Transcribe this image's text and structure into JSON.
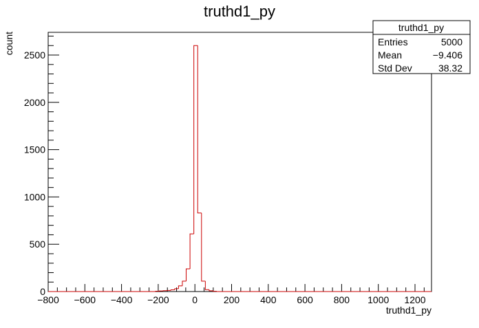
{
  "chart_data": {
    "type": "histogram",
    "title": "truthd1_py",
    "x_label": "truthd1_py",
    "y_label": "count",
    "bins": [
      -214.8,
      -193.9,
      -173,
      -152.1,
      -131.2,
      -110.3,
      -89.4,
      -68.5,
      -47.6,
      -26.7,
      -5.8,
      15.1,
      36,
      56.9,
      77.8,
      98.7,
      119.6
    ],
    "values": [
      4,
      6,
      9,
      12,
      18,
      30,
      60,
      110,
      240,
      610,
      2600,
      830,
      110,
      20,
      8,
      3
    ],
    "color": "#cc0000",
    "xlim": [
      -800,
      1290
    ],
    "ylim": [
      0,
      2740
    ],
    "xticks": [
      {
        "value": -800,
        "label": "−800"
      },
      {
        "value": -600,
        "label": "−600"
      },
      {
        "value": -400,
        "label": "−400"
      },
      {
        "value": -200,
        "label": "−200"
      },
      0,
      200,
      400,
      600,
      800,
      1000,
      1200
    ],
    "yticks": [
      0,
      500,
      1000,
      1500,
      2000,
      2500
    ],
    "stats": {
      "title": "truthd1_py",
      "rows": [
        [
          "Entries",
          "5000"
        ],
        [
          "Mean",
          "−9.406"
        ],
        [
          "Std Dev",
          "38.32"
        ]
      ]
    }
  }
}
